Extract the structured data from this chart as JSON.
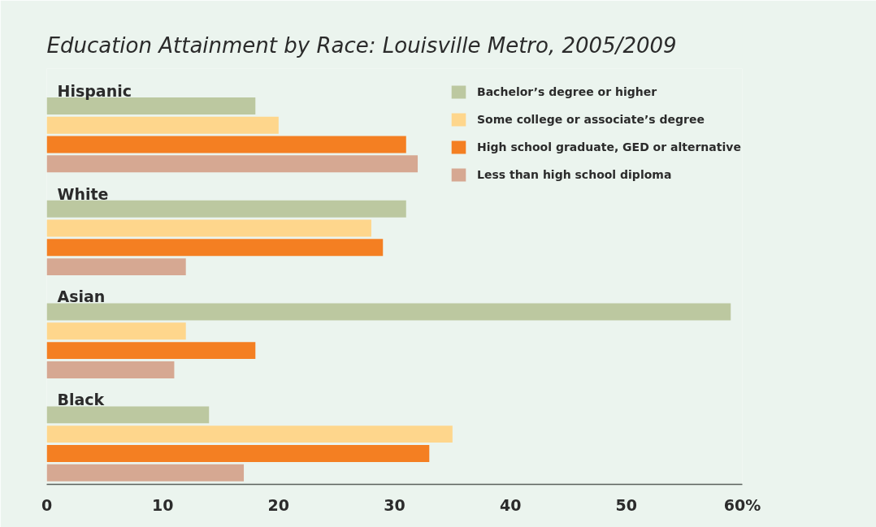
{
  "chart_data": {
    "type": "bar",
    "orientation": "horizontal",
    "title": "Education Attainment by Race: Louisville Metro, 2005/2009",
    "categories": [
      "Hispanic",
      "White",
      "Asian",
      "Black"
    ],
    "series": [
      {
        "name": "Bachelor’s degree or higher",
        "color": "#bcc8a0",
        "values": [
          18,
          31,
          59,
          14
        ]
      },
      {
        "name": "Some college or associate’s degree",
        "color": "#fed68c",
        "values": [
          20,
          28,
          12,
          35
        ]
      },
      {
        "name": "High school graduate, GED or alternative",
        "color": "#f47f22",
        "values": [
          31,
          29,
          18,
          33
        ]
      },
      {
        "name": "Less than high school diploma",
        "color": "#d6a892",
        "values": [
          32,
          12,
          11,
          17
        ]
      }
    ],
    "xlim": [
      0,
      60
    ],
    "xticks": [
      0,
      10,
      20,
      30,
      40,
      50,
      {
        "value": 60,
        "label": "60%"
      }
    ],
    "grid": false,
    "legend": "right"
  }
}
